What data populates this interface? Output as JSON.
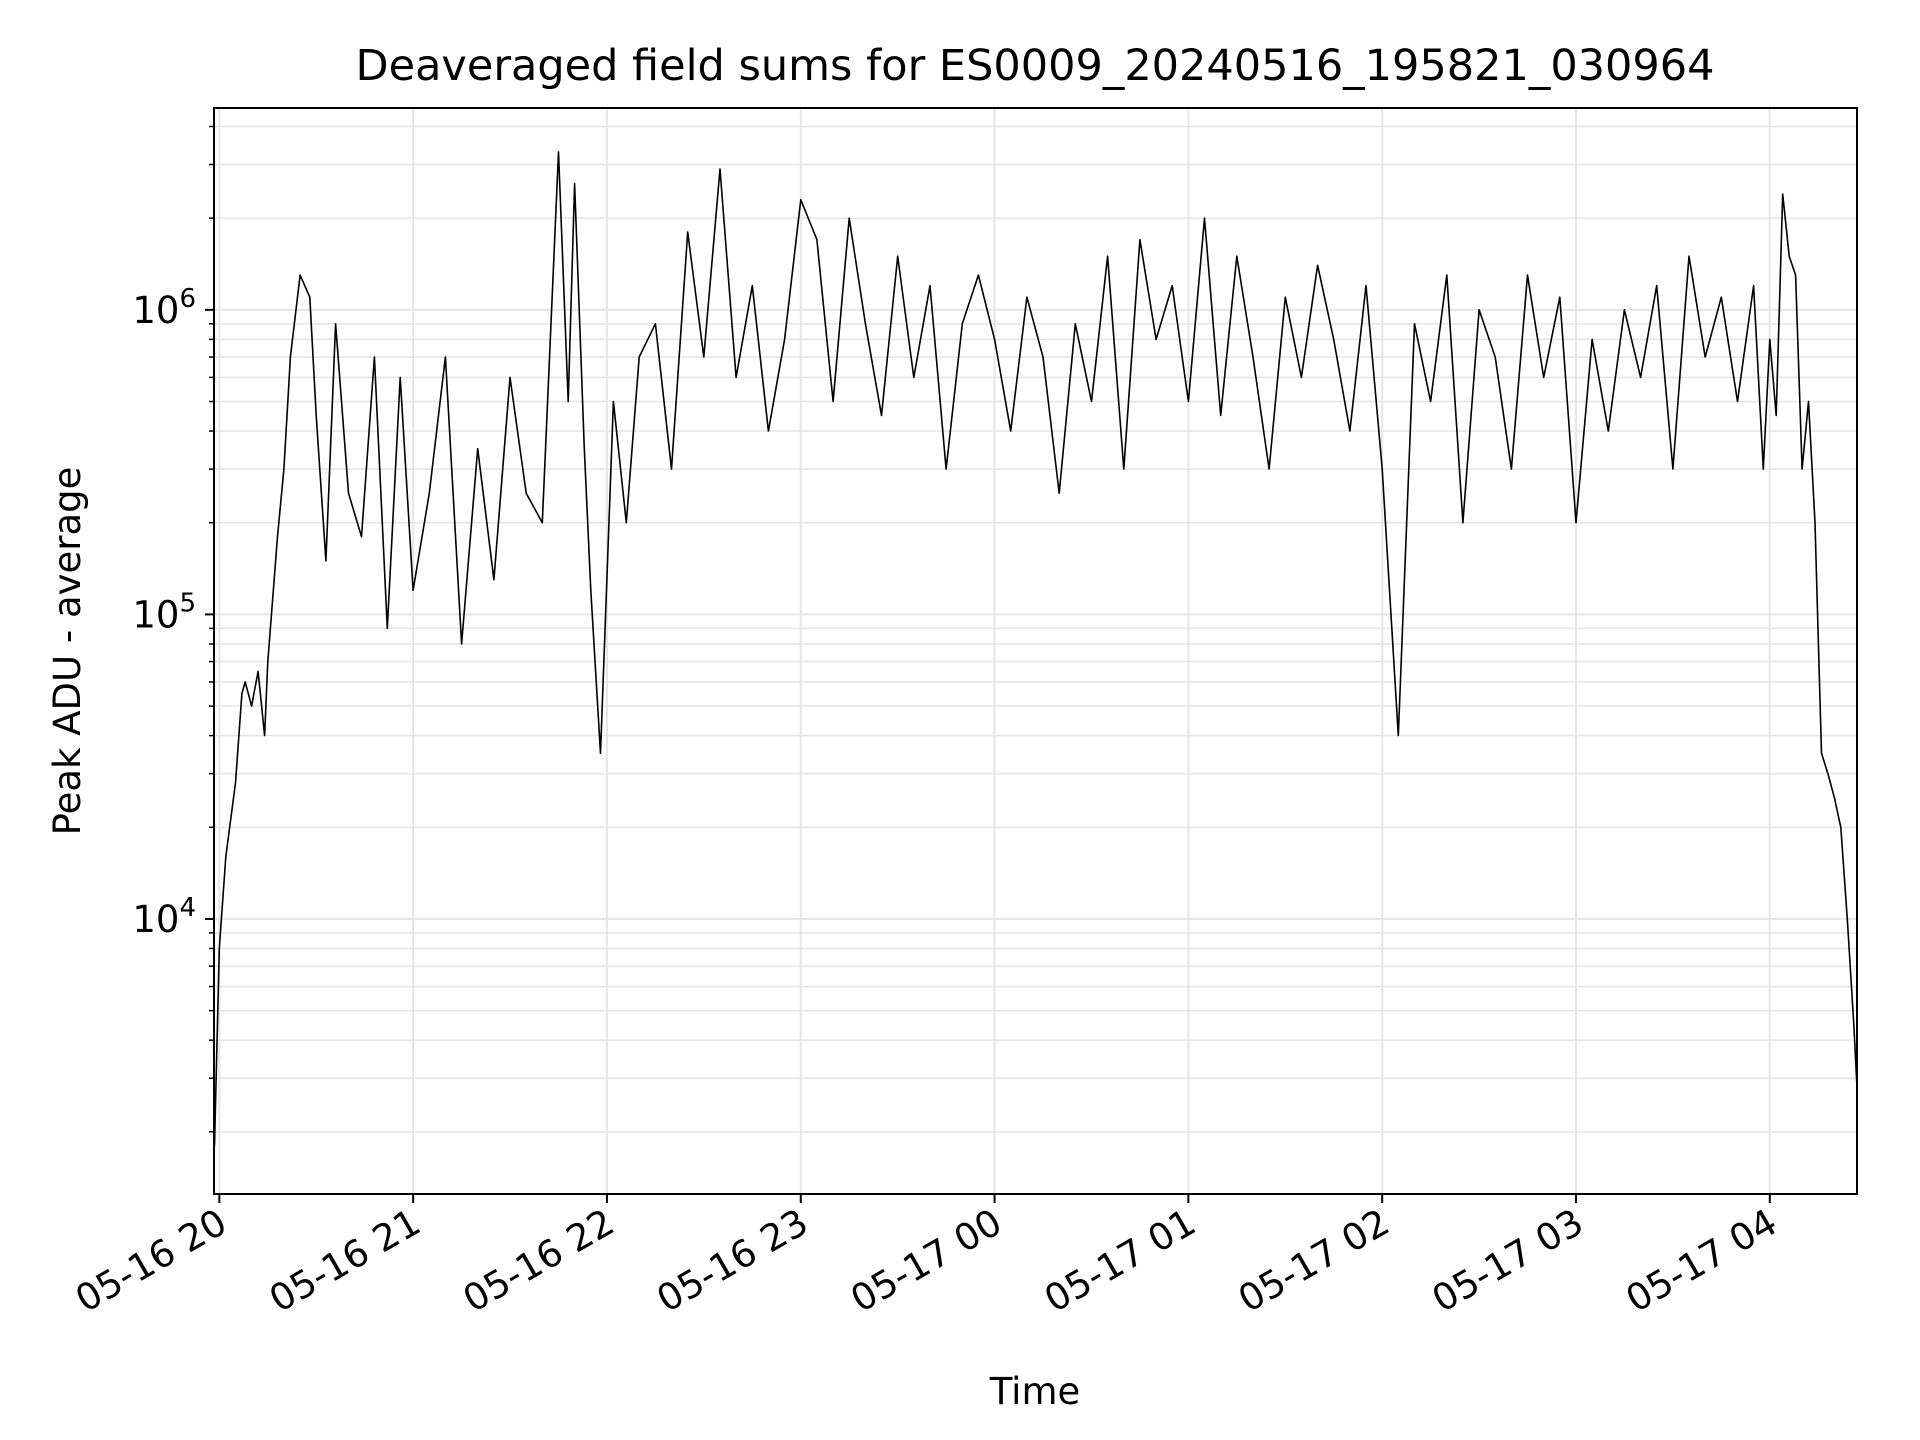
{
  "chart_data": {
    "type": "line",
    "title": "Deaveraged field sums for ES0009_20240516_195821_030964",
    "xlabel": "Time",
    "ylabel": "Peak ADU - average",
    "yscale": "log",
    "grid": true,
    "legend": "none",
    "line_color": "#000000",
    "grid_color": "#e6e6e6",
    "xlim": [
      "2024-05-16T19:58:21",
      "2024-05-17T04:27:00"
    ],
    "ylim": [
      1250,
      4600000
    ],
    "x_ticks": [
      "05-16 20",
      "05-16 21",
      "05-16 22",
      "05-16 23",
      "05-17 00",
      "05-17 01",
      "05-17 02",
      "05-17 03",
      "05-17 04"
    ],
    "x_tick_times": [
      "2024-05-16T20:00",
      "2024-05-16T21:00",
      "2024-05-16T22:00",
      "2024-05-16T23:00",
      "2024-05-17T00:00",
      "2024-05-17T01:00",
      "2024-05-17T02:00",
      "2024-05-17T03:00",
      "2024-05-17T04:00"
    ],
    "y_ticks": [
      {
        "value": 10000,
        "base": "10",
        "exp": "4"
      },
      {
        "value": 100000,
        "base": "10",
        "exp": "5"
      },
      {
        "value": 1000000,
        "base": "10",
        "exp": "6"
      }
    ],
    "series": [
      {
        "x": [
          "2024-05-16T19:58:30",
          "2024-05-16T20:00",
          "2024-05-16T20:02",
          "2024-05-16T20:05",
          "2024-05-16T20:07",
          "2024-05-16T20:08",
          "2024-05-16T20:10",
          "2024-05-16T20:12",
          "2024-05-16T20:14",
          "2024-05-16T20:15",
          "2024-05-16T20:18",
          "2024-05-16T20:20",
          "2024-05-16T20:22",
          "2024-05-16T20:25",
          "2024-05-16T20:28",
          "2024-05-16T20:30",
          "2024-05-16T20:33",
          "2024-05-16T20:36",
          "2024-05-16T20:40",
          "2024-05-16T20:44",
          "2024-05-16T20:48",
          "2024-05-16T20:52",
          "2024-05-16T20:56",
          "2024-05-16T21:00",
          "2024-05-16T21:05",
          "2024-05-16T21:10",
          "2024-05-16T21:15",
          "2024-05-16T21:20",
          "2024-05-16T21:25",
          "2024-05-16T21:30",
          "2024-05-16T21:35",
          "2024-05-16T21:40",
          "2024-05-16T21:45",
          "2024-05-16T21:48",
          "2024-05-16T21:50",
          "2024-05-16T21:53",
          "2024-05-16T21:55",
          "2024-05-16T21:58",
          "2024-05-16T22:02",
          "2024-05-16T22:06",
          "2024-05-16T22:10",
          "2024-05-16T22:15",
          "2024-05-16T22:20",
          "2024-05-16T22:25",
          "2024-05-16T22:30",
          "2024-05-16T22:35",
          "2024-05-16T22:40",
          "2024-05-16T22:45",
          "2024-05-16T22:50",
          "2024-05-16T22:55",
          "2024-05-16T23:00",
          "2024-05-16T23:05",
          "2024-05-16T23:10",
          "2024-05-16T23:15",
          "2024-05-16T23:20",
          "2024-05-16T23:25",
          "2024-05-16T23:30",
          "2024-05-16T23:35",
          "2024-05-16T23:40",
          "2024-05-16T23:45",
          "2024-05-16T23:50",
          "2024-05-16T23:55",
          "2024-05-17T00:00",
          "2024-05-17T00:05",
          "2024-05-17T00:10",
          "2024-05-17T00:15",
          "2024-05-17T00:20",
          "2024-05-17T00:25",
          "2024-05-17T00:30",
          "2024-05-17T00:35",
          "2024-05-17T00:40",
          "2024-05-17T00:45",
          "2024-05-17T00:50",
          "2024-05-17T00:55",
          "2024-05-17T01:00",
          "2024-05-17T01:05",
          "2024-05-17T01:10",
          "2024-05-17T01:15",
          "2024-05-17T01:20",
          "2024-05-17T01:25",
          "2024-05-17T01:30",
          "2024-05-17T01:35",
          "2024-05-17T01:40",
          "2024-05-17T01:45",
          "2024-05-17T01:50",
          "2024-05-17T01:55",
          "2024-05-17T02:00",
          "2024-05-17T02:05",
          "2024-05-17T02:10",
          "2024-05-17T02:15",
          "2024-05-17T02:20",
          "2024-05-17T02:25",
          "2024-05-17T02:30",
          "2024-05-17T02:35",
          "2024-05-17T02:40",
          "2024-05-17T02:45",
          "2024-05-17T02:50",
          "2024-05-17T02:55",
          "2024-05-17T03:00",
          "2024-05-17T03:05",
          "2024-05-17T03:10",
          "2024-05-17T03:15",
          "2024-05-17T03:20",
          "2024-05-17T03:25",
          "2024-05-17T03:30",
          "2024-05-17T03:35",
          "2024-05-17T03:40",
          "2024-05-17T03:45",
          "2024-05-17T03:50",
          "2024-05-17T03:55",
          "2024-05-17T03:58",
          "2024-05-17T04:00",
          "2024-05-17T04:02",
          "2024-05-17T04:04",
          "2024-05-17T04:06",
          "2024-05-17T04:08",
          "2024-05-17T04:10",
          "2024-05-17T04:12",
          "2024-05-17T04:14",
          "2024-05-17T04:16",
          "2024-05-17T04:18",
          "2024-05-17T04:20",
          "2024-05-17T04:22",
          "2024-05-17T04:24",
          "2024-05-17T04:26",
          "2024-05-17T04:27"
        ],
        "y": [
          1800,
          8000,
          16000,
          28000,
          55000,
          60000,
          50000,
          65000,
          40000,
          70000,
          180000,
          300000,
          700000,
          1300000,
          1100000,
          450000,
          150000,
          900000,
          250000,
          180000,
          700000,
          90000,
          600000,
          120000,
          250000,
          700000,
          80000,
          350000,
          130000,
          600000,
          250000,
          200000,
          3300000,
          500000,
          2600000,
          350000,
          120000,
          35000,
          500000,
          200000,
          700000,
          900000,
          300000,
          1800000,
          700000,
          2900000,
          600000,
          1200000,
          400000,
          800000,
          2300000,
          1700000,
          500000,
          2000000,
          900000,
          450000,
          1500000,
          600000,
          1200000,
          300000,
          900000,
          1300000,
          800000,
          400000,
          1100000,
          700000,
          250000,
          900000,
          500000,
          1500000,
          300000,
          1700000,
          800000,
          1200000,
          500000,
          2000000,
          450000,
          1500000,
          700000,
          300000,
          1100000,
          600000,
          1400000,
          800000,
          400000,
          1200000,
          300000,
          40000,
          900000,
          500000,
          1300000,
          200000,
          1000000,
          700000,
          300000,
          1300000,
          600000,
          1100000,
          200000,
          800000,
          400000,
          1000000,
          600000,
          1200000,
          300000,
          1500000,
          700000,
          1100000,
          500000,
          1200000,
          300000,
          800000,
          450000,
          2400000,
          1500000,
          1300000,
          300000,
          500000,
          200000,
          35000,
          30000,
          25000,
          20000,
          10000,
          4500,
          2800
        ]
      }
    ]
  }
}
